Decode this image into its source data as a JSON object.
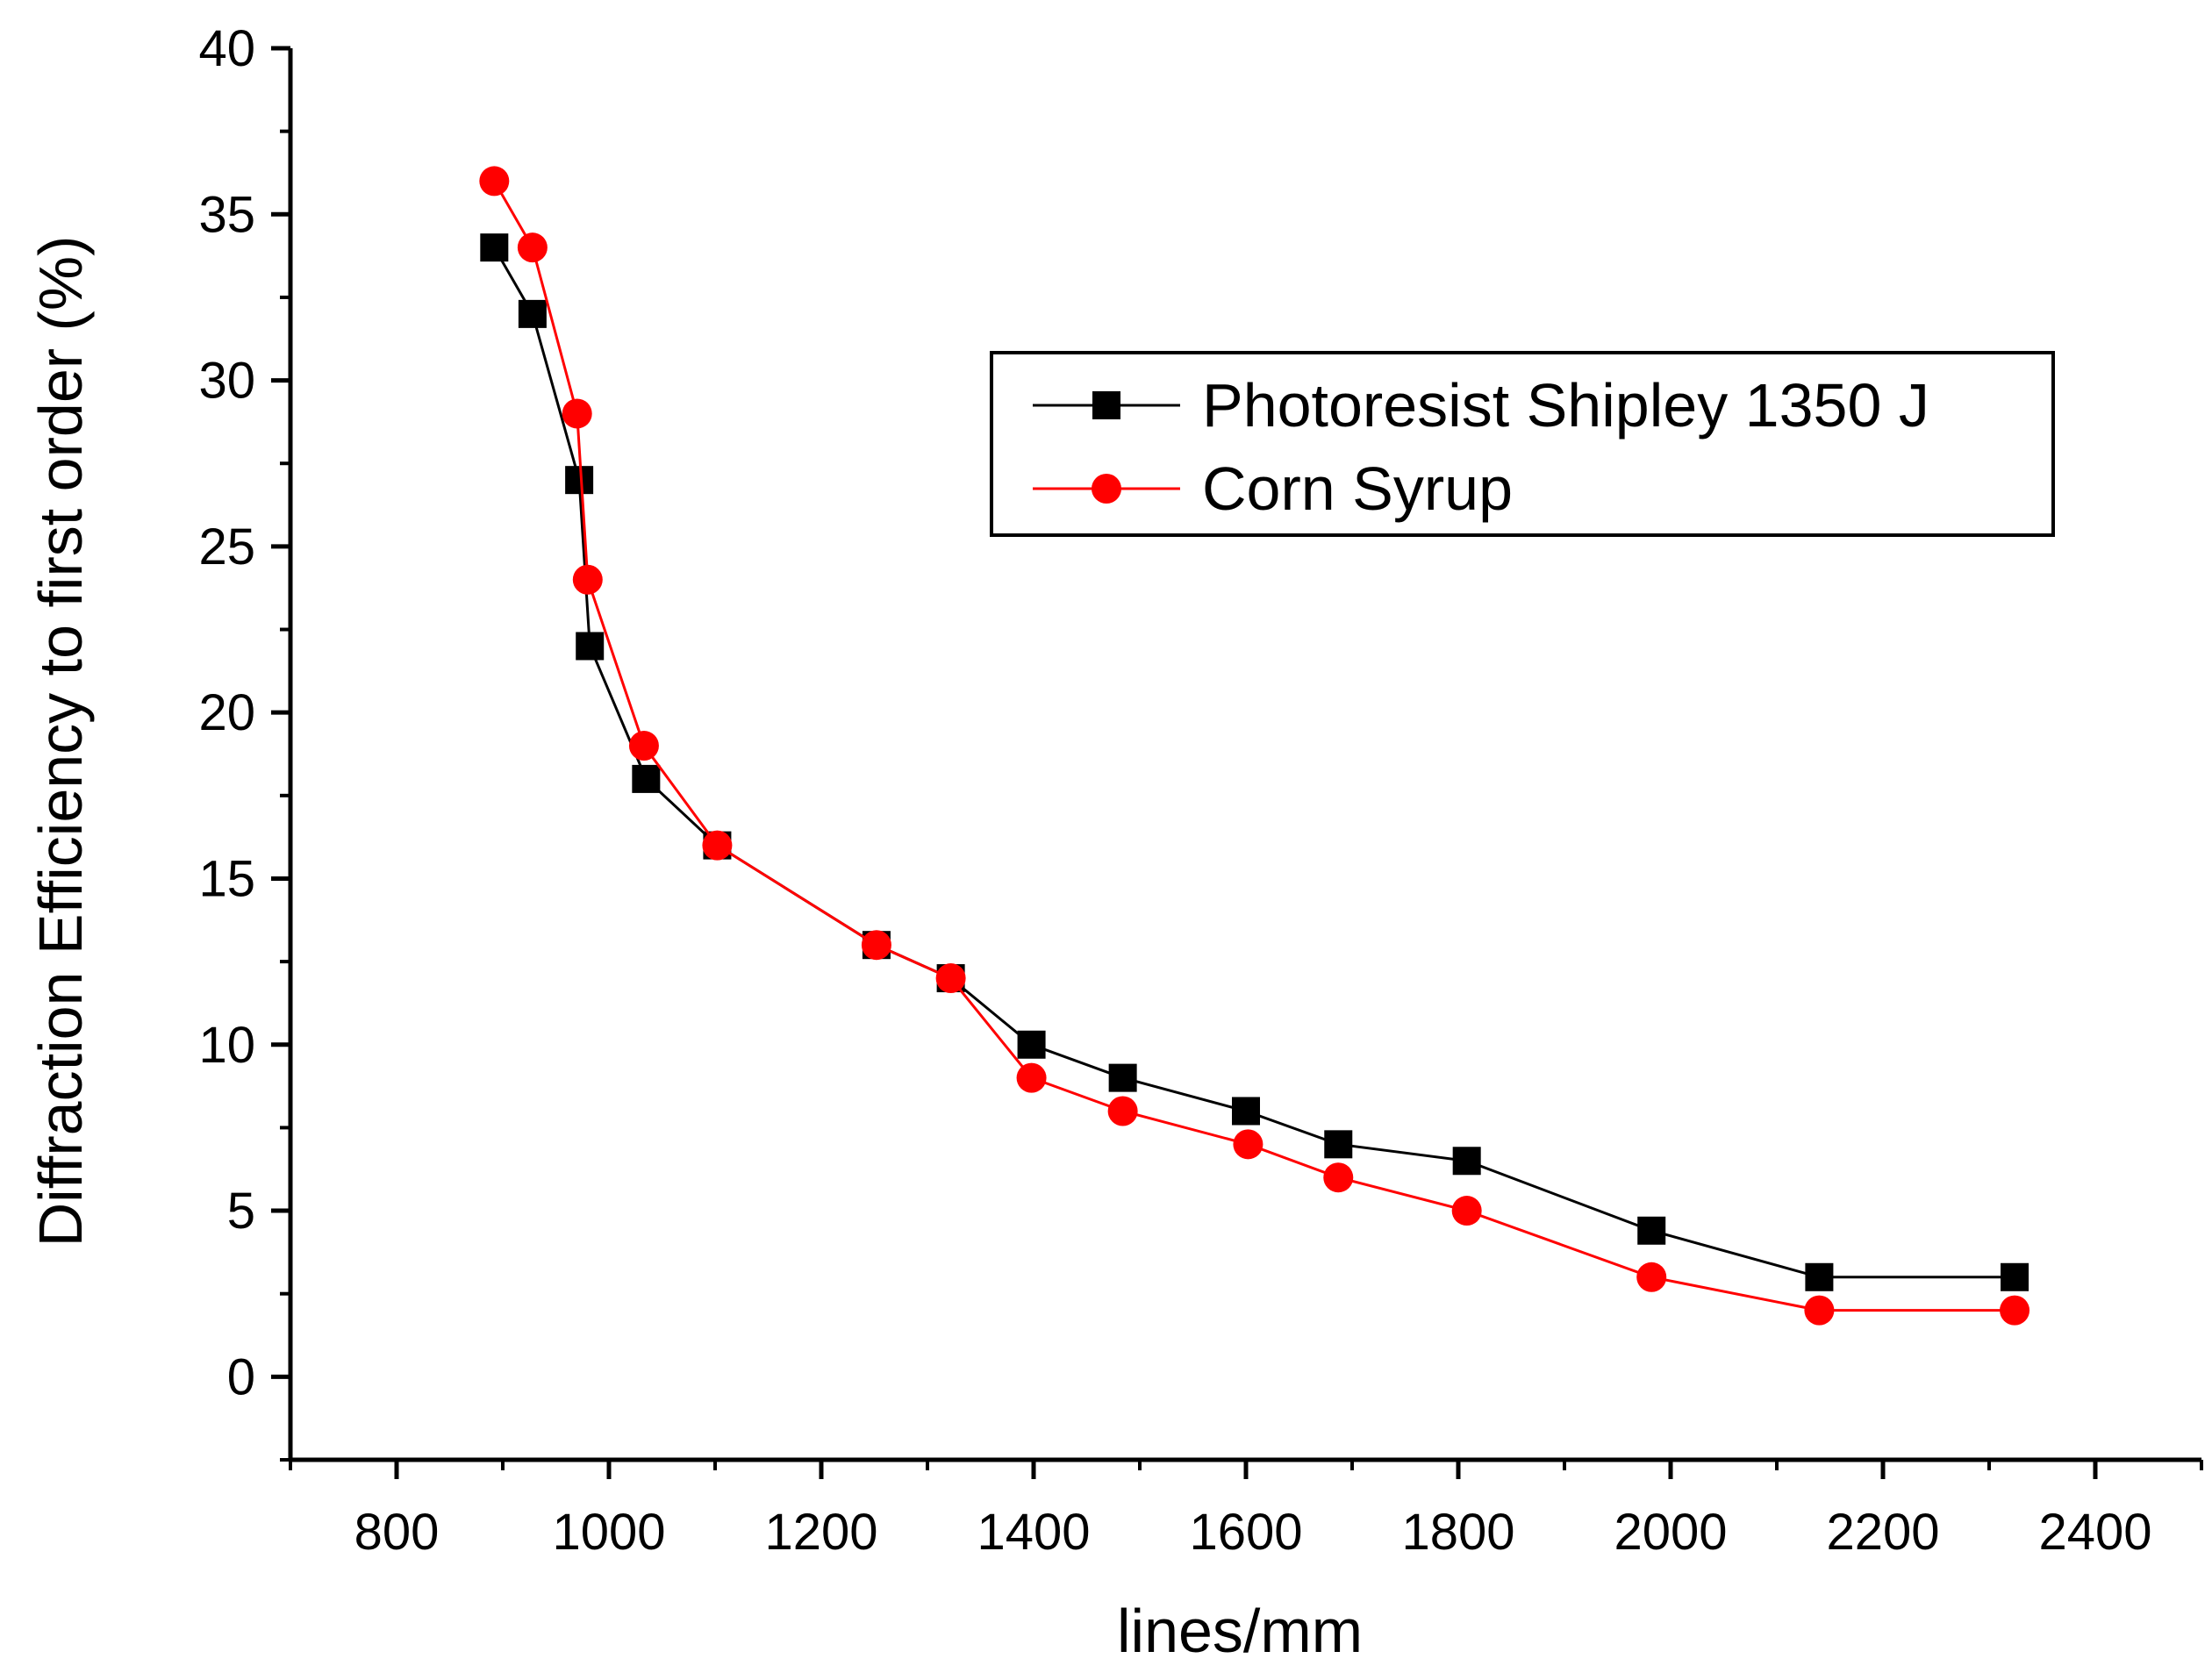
{
  "chart_data": {
    "type": "line",
    "title": "",
    "xlabel": "lines/mm",
    "ylabel": "Diffraction Efficiency  to first order  (%)",
    "xlim": [
      700,
      2500
    ],
    "ylim": [
      -2.5,
      40
    ],
    "xticks": [
      800,
      1000,
      1200,
      1400,
      1600,
      1800,
      2000,
      2200,
      2400
    ],
    "yticks": [
      0,
      5,
      10,
      15,
      20,
      25,
      30,
      35,
      40
    ],
    "grid": false,
    "legend_position": "upper-right",
    "series": [
      {
        "name": "Photoresist Shipley 1350 J",
        "marker": "square",
        "color": "#000000",
        "x": [
          892,
          928,
          972,
          982,
          1035,
          1102,
          1252,
          1322,
          1398,
          1484,
          1600,
          1687,
          1808,
          1982,
          2140,
          2324
        ],
        "y": [
          34,
          32,
          27,
          22,
          18,
          16,
          13,
          12,
          10,
          9,
          8,
          7,
          6.5,
          4.4,
          3,
          3
        ]
      },
      {
        "name": "Corn Syrup",
        "marker": "circle",
        "color": "#ff0000",
        "x": [
          892,
          928,
          970,
          980,
          1033,
          1102,
          1252,
          1322,
          1398,
          1484,
          1602,
          1687,
          1808,
          1982,
          2140,
          2324
        ],
        "y": [
          36,
          34,
          29,
          24,
          19,
          16,
          13,
          12,
          9,
          8,
          7,
          6,
          5,
          3,
          2,
          2
        ]
      }
    ]
  }
}
